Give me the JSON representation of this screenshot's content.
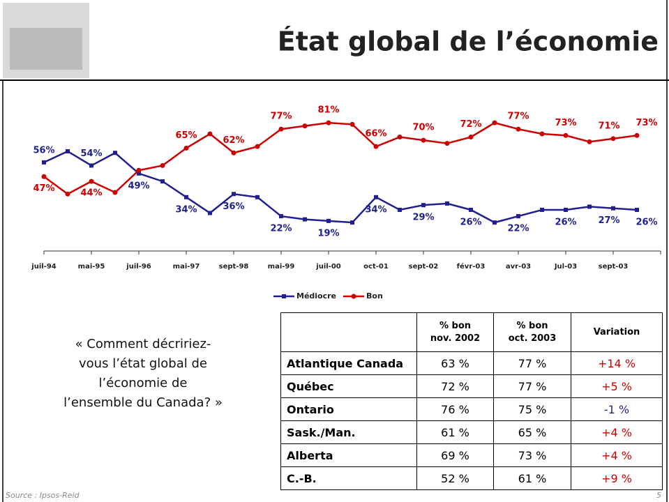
{
  "header": {
    "title": "État global de l’économie"
  },
  "chart_data": {
    "type": "line",
    "categories": [
      "juil-94",
      null,
      "mai-95",
      null,
      "juil-96",
      null,
      "mai-97",
      null,
      "sept-98",
      null,
      "mai-99",
      null,
      "juil-00",
      null,
      "oct-01",
      null,
      "sept-02",
      null,
      "févr-03",
      null,
      "avr-03",
      null,
      "Jul-03",
      null,
      "sept-03",
      null
    ],
    "ylim": [
      0,
      100
    ],
    "legend": "bottom",
    "series": [
      {
        "name": "Médiocre",
        "color": "#1f1f8f",
        "marker": "square",
        "values": [
          56,
          63,
          54,
          62,
          49,
          44,
          34,
          24,
          36,
          34,
          22,
          20,
          19,
          18,
          34,
          26,
          29,
          30,
          26,
          18,
          22,
          26,
          26,
          28,
          27,
          26
        ],
        "value_labels": [
          "56%",
          null,
          "54%",
          null,
          "49%",
          null,
          "34%",
          null,
          "36%",
          null,
          "22%",
          null,
          "19%",
          null,
          "34%",
          null,
          "29%",
          null,
          "26%",
          null,
          "22%",
          null,
          "26%",
          null,
          "27%",
          "26%"
        ]
      },
      {
        "name": "Bon",
        "color": "#cc0000",
        "marker": "circle",
        "values": [
          47,
          36,
          44,
          37,
          51,
          54,
          65,
          74,
          62,
          66,
          77,
          79,
          81,
          80,
          66,
          72,
          70,
          68,
          72,
          81,
          77,
          74,
          73,
          69,
          71,
          73
        ],
        "value_labels": [
          "47%",
          null,
          "44%",
          null,
          null,
          null,
          "65%",
          null,
          "62%",
          null,
          "77%",
          null,
          "81%",
          null,
          "66%",
          null,
          "70%",
          null,
          "72%",
          null,
          "77%",
          null,
          "73%",
          null,
          "71%",
          "73%"
        ]
      }
    ]
  },
  "question": [
    "« Comment décririez-",
    "vous l’état global de",
    "l’économie de",
    "l’ensemble du Canada? »"
  ],
  "table": {
    "header": [
      [
        ""
      ],
      [
        "% bon",
        "nov. 2002"
      ],
      [
        "% bon",
        "oct. 2003"
      ],
      [
        "Variation"
      ]
    ],
    "rows": [
      [
        "Atlantique Canada",
        "63 %",
        "77 %",
        "+14 %"
      ],
      [
        "Québec",
        "72 %",
        "77 %",
        "+5 %"
      ],
      [
        "Ontario",
        "76 %",
        "75 %",
        "-1 %"
      ],
      [
        "Sask./Man.",
        "61 %",
        "65 %",
        "+4 %"
      ],
      [
        "Alberta",
        "69 %",
        "73 %",
        "+4 %"
      ],
      [
        "C.-B.",
        "52 %",
        "61 %",
        "+9 %"
      ]
    ]
  },
  "footer": {
    "source": "Source : Ipsos-Reid",
    "page": "5"
  }
}
